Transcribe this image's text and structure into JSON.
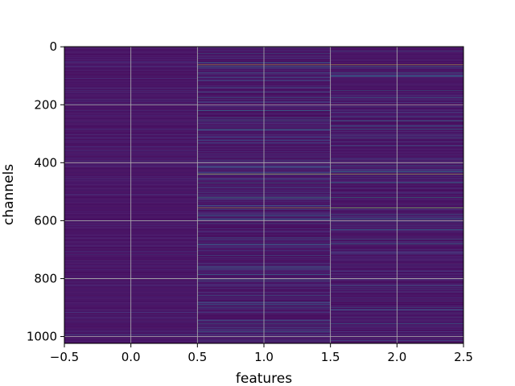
{
  "chart_data": {
    "type": "heatmap",
    "title": "",
    "xlabel": "features",
    "ylabel": "channels",
    "xlim": [
      -0.5,
      2.5
    ],
    "ylim": [
      1023.5,
      -0.5
    ],
    "grid": true,
    "colormap": "viridis",
    "n_rows": 1024,
    "n_cols": 3,
    "x_ticks": [
      -0.5,
      0.0,
      0.5,
      1.0,
      1.5,
      2.0,
      2.5
    ],
    "x_tick_labels": [
      "−0.5",
      "0.0",
      "0.5",
      "1.0",
      "1.5",
      "2.0",
      "2.5"
    ],
    "y_ticks": [
      0,
      200,
      400,
      600,
      800,
      1000
    ],
    "y_tick_labels": [
      "0",
      "200",
      "400",
      "600",
      "800",
      "1000"
    ],
    "column_0_highlights": [
      {
        "row": 200,
        "value": 0.28
      },
      {
        "row": 400,
        "value": 0.22
      },
      {
        "row": 600,
        "value": 0.4
      },
      {
        "row": 800,
        "value": 0.55
      },
      {
        "row": 995,
        "value": 0.35
      }
    ],
    "columns_1_2_highlights": [
      {
        "row": 62,
        "value": 0.98
      },
      {
        "row": 68,
        "value": 0.5
      },
      {
        "row": 90,
        "value": 0.42
      },
      {
        "row": 175,
        "value": 0.45
      },
      {
        "row": 255,
        "value": 0.5
      },
      {
        "row": 285,
        "value": 0.48
      },
      {
        "row": 440,
        "value": 0.95
      },
      {
        "row": 470,
        "value": 0.5
      },
      {
        "row": 520,
        "value": 0.6
      },
      {
        "row": 555,
        "value": 0.92
      },
      {
        "row": 595,
        "value": 0.45
      },
      {
        "row": 680,
        "value": 0.45
      },
      {
        "row": 900,
        "value": 0.4
      },
      {
        "row": 955,
        "value": 0.42
      }
    ]
  }
}
